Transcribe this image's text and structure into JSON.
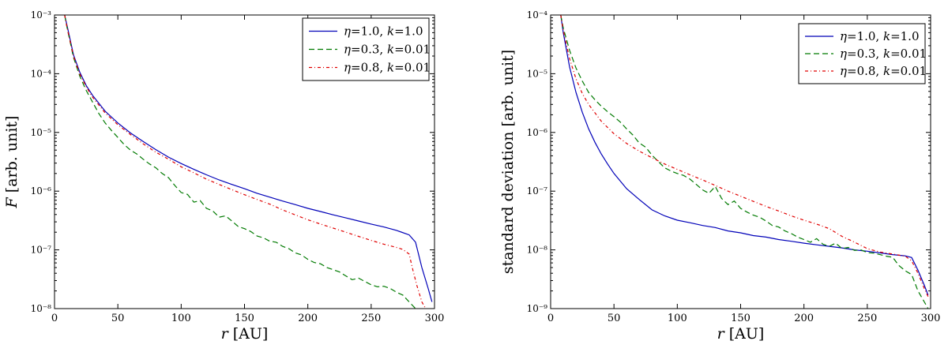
{
  "chart_data": [
    {
      "type": "line",
      "title": "",
      "xlabel_var": "r",
      "xlabel_unit": " [AU]",
      "ylabel_var": "F",
      "ylabel_unit": " [arb. unit]",
      "yscale": "log",
      "xlim": [
        0,
        300
      ],
      "ylim_exp": [
        -8,
        -3
      ],
      "xticks": [
        0,
        50,
        100,
        150,
        200,
        250,
        300
      ],
      "xtick_labels": [
        "0",
        "50",
        "100",
        "150",
        "200",
        "250",
        "300"
      ],
      "yticks_exp": [
        -8,
        -7,
        -6,
        -5,
        -4,
        -3
      ],
      "ytick_labels": [
        "10⁻⁸",
        "10⁻⁷",
        "10⁻⁶",
        "10⁻⁵",
        "10⁻⁴",
        "10⁻³"
      ],
      "legend_position": "top-right",
      "series": [
        {
          "name": "η=1.0, k=1.0",
          "eta": "1.0",
          "k": "1.0",
          "color": "#0000b8",
          "dash": "",
          "x": [
            8,
            10,
            15,
            20,
            25,
            30,
            40,
            50,
            60,
            70,
            80,
            90,
            100,
            110,
            120,
            130,
            140,
            150,
            160,
            170,
            180,
            190,
            200,
            210,
            220,
            230,
            240,
            250,
            260,
            270,
            280,
            285,
            290,
            295,
            298
          ],
          "y": [
            0.001,
            0.00065,
            0.00021,
            0.000105,
            6.3e-05,
            4.3e-05,
            2.3e-05,
            1.45e-05,
            9.8e-06,
            7e-06,
            5.1e-06,
            3.8e-06,
            2.95e-06,
            2.35e-06,
            1.9e-06,
            1.55e-06,
            1.3e-06,
            1.1e-06,
            9.2e-07,
            7.9e-07,
            6.8e-07,
            5.9e-07,
            5.1e-07,
            4.5e-07,
            3.95e-07,
            3.5e-07,
            3.1e-07,
            2.75e-07,
            2.45e-07,
            2.15e-07,
            1.8e-07,
            1.35e-07,
            5e-08,
            2.2e-08,
            1.3e-08
          ]
        },
        {
          "name": "η=0.3, k=0.01",
          "eta": "0.3",
          "k": "0.01",
          "color": "#007a00",
          "dash": "7,4",
          "x": [
            8,
            10,
            15,
            20,
            25,
            30,
            35,
            40,
            45,
            50,
            55,
            60,
            65,
            70,
            75,
            80,
            85,
            90,
            95,
            100,
            105,
            110,
            115,
            120,
            125,
            130,
            135,
            140,
            145,
            150,
            155,
            160,
            165,
            170,
            175,
            180,
            185,
            190,
            195,
            200,
            205,
            210,
            215,
            220,
            225,
            230,
            235,
            240,
            245,
            250,
            255,
            260,
            265,
            270,
            275,
            280,
            285
          ],
          "y": [
            0.001,
            0.0006,
            0.00019,
            9e-05,
            5.2e-05,
            3.3e-05,
            2.1e-05,
            1.45e-05,
            1.08e-05,
            8.2e-06,
            6.2e-06,
            5e-06,
            4.3e-06,
            3.5e-06,
            2.9e-06,
            2.5e-06,
            2e-06,
            1.7e-06,
            1.25e-06,
            9.5e-07,
            8.8e-07,
            6.5e-07,
            6.9e-07,
            5.1e-07,
            4.6e-07,
            3.6e-07,
            3.8e-07,
            3.1e-07,
            2.5e-07,
            2.3e-07,
            2.05e-07,
            1.72e-07,
            1.6e-07,
            1.4e-07,
            1.35e-07,
            1.15e-07,
            1.05e-07,
            8.9e-08,
            8.2e-08,
            6.9e-08,
            6.1e-08,
            5.8e-08,
            5e-08,
            4.6e-08,
            4.2e-08,
            3.6e-08,
            3.1e-08,
            3.3e-08,
            2.9e-08,
            2.55e-08,
            2.35e-08,
            2.4e-08,
            2.2e-08,
            1.9e-08,
            1.7e-08,
            1.3e-08,
            1e-08
          ]
        },
        {
          "name": "η=0.8, k=0.01",
          "eta": "0.8",
          "k": "0.01",
          "color": "#e00000",
          "dash": "4,3,1,3",
          "x": [
            8,
            10,
            15,
            20,
            25,
            30,
            40,
            50,
            60,
            70,
            80,
            90,
            100,
            110,
            120,
            130,
            140,
            150,
            160,
            170,
            180,
            190,
            200,
            210,
            220,
            230,
            240,
            250,
            260,
            270,
            275,
            280,
            283,
            286,
            290,
            293
          ],
          "y": [
            0.001,
            0.0006,
            0.0002,
            9.8e-05,
            6e-05,
            4e-05,
            2.15e-05,
            1.35e-05,
            9.2e-06,
            6.4e-06,
            4.6e-06,
            3.5e-06,
            2.6e-06,
            2.05e-06,
            1.6e-06,
            1.3e-06,
            1.06e-06,
            8.7e-07,
            7.2e-07,
            6e-07,
            4.8e-07,
            3.95e-07,
            3.25e-07,
            2.75e-07,
            2.35e-07,
            2e-07,
            1.7e-07,
            1.45e-07,
            1.25e-07,
            1.1e-07,
            1.02e-07,
            8.5e-08,
            4.5e-08,
            2.5e-08,
            1.3e-08,
            1e-08
          ]
        }
      ]
    },
    {
      "type": "line",
      "title": "",
      "xlabel_var": "r",
      "xlabel_unit": " [AU]",
      "ylabel_text": "standard deviation [arb. unit]",
      "yscale": "log",
      "xlim": [
        0,
        300
      ],
      "ylim_exp": [
        -9,
        -4
      ],
      "xticks": [
        0,
        50,
        100,
        150,
        200,
        250,
        300
      ],
      "xtick_labels": [
        "0",
        "50",
        "100",
        "150",
        "200",
        "250",
        "300"
      ],
      "yticks_exp": [
        -9,
        -8,
        -7,
        -6,
        -5,
        -4
      ],
      "ytick_labels": [
        "10⁻⁹",
        "10⁻⁸",
        "10⁻⁷",
        "10⁻⁶",
        "10⁻⁵",
        "10⁻⁴"
      ],
      "legend_position": "top-right",
      "series": [
        {
          "name": "η=1.0, k=1.0",
          "eta": "1.0",
          "k": "1.0",
          "color": "#0000b8",
          "dash": "",
          "x": [
            8,
            10,
            15,
            20,
            25,
            30,
            35,
            40,
            45,
            50,
            60,
            70,
            80,
            90,
            100,
            110,
            120,
            130,
            140,
            150,
            160,
            170,
            180,
            190,
            200,
            210,
            220,
            230,
            240,
            250,
            260,
            270,
            280,
            285,
            290,
            295,
            298
          ],
          "y": [
            0.0001,
            5e-05,
            1.3e-05,
            4.8e-06,
            2.2e-06,
            1.15e-06,
            6.8e-07,
            4.3e-07,
            2.9e-07,
            2e-07,
            1.1e-07,
            7.2e-08,
            4.8e-08,
            3.8e-08,
            3.2e-08,
            2.9e-08,
            2.6e-08,
            2.4e-08,
            2.1e-08,
            1.95e-08,
            1.75e-08,
            1.65e-08,
            1.5e-08,
            1.4e-08,
            1.3e-08,
            1.22e-08,
            1.15e-08,
            1.08e-08,
            1e-08,
            9.5e-09,
            8.9e-09,
            8.3e-09,
            7.9e-09,
            7.4e-09,
            4.5e-09,
            2.5e-09,
            1.7e-09
          ]
        },
        {
          "name": "η=0.3, k=0.01",
          "eta": "0.3",
          "k": "0.01",
          "color": "#007a00",
          "dash": "7,4",
          "x": [
            8,
            10,
            15,
            20,
            25,
            30,
            35,
            40,
            45,
            50,
            55,
            60,
            65,
            70,
            75,
            80,
            85,
            90,
            95,
            100,
            105,
            110,
            115,
            120,
            125,
            130,
            135,
            140,
            145,
            150,
            155,
            160,
            165,
            170,
            175,
            180,
            185,
            190,
            195,
            200,
            205,
            210,
            215,
            220,
            225,
            230,
            235,
            240,
            245,
            250,
            255,
            260,
            265,
            270,
            275,
            280,
            285,
            290,
            295,
            298
          ],
          "y": [
            0.0001,
            6e-05,
            2.5e-05,
            1.25e-05,
            7.5e-06,
            4.8e-06,
            3.6e-06,
            2.8e-06,
            2.25e-06,
            1.85e-06,
            1.5e-06,
            1.15e-06,
            9e-07,
            6.6e-07,
            5.6e-07,
            4.1e-07,
            3.2e-07,
            2.5e-07,
            2.2e-07,
            2e-07,
            1.85e-07,
            1.6e-07,
            1.3e-07,
            1.05e-07,
            9.2e-08,
            1.2e-07,
            7.5e-08,
            5.9e-08,
            6.8e-08,
            5.1e-08,
            4.4e-08,
            3.9e-08,
            3.6e-08,
            3.1e-08,
            2.6e-08,
            2.45e-08,
            2.1e-08,
            1.9e-08,
            1.65e-08,
            1.5e-08,
            1.35e-08,
            1.55e-08,
            1.25e-08,
            1.15e-08,
            1.3e-08,
            1.05e-08,
            1.1e-08,
            9.8e-09,
            1e-08,
            9e-09,
            8.8e-09,
            8.3e-09,
            7.8e-09,
            7.5e-09,
            5.4e-09,
            4.4e-09,
            3.8e-09,
            2e-09,
            1.3e-09,
            1e-09
          ]
        },
        {
          "name": "η=0.8, k=0.01",
          "eta": "0.8",
          "k": "0.01",
          "color": "#e00000",
          "dash": "4,3,1,3",
          "x": [
            8,
            10,
            15,
            20,
            25,
            30,
            40,
            50,
            60,
            70,
            80,
            90,
            100,
            110,
            120,
            130,
            140,
            150,
            160,
            170,
            180,
            190,
            200,
            210,
            220,
            230,
            240,
            250,
            260,
            270,
            280,
            285,
            290,
            295,
            298
          ],
          "y": [
            0.0001,
            5.5e-05,
            1.8e-05,
            8.2e-06,
            4.6e-06,
            3e-06,
            1.55e-06,
            9.5e-07,
            6.5e-07,
            4.8e-07,
            3.7e-07,
            2.9e-07,
            2.35e-07,
            1.9e-07,
            1.55e-07,
            1.25e-07,
            1e-07,
            8.2e-08,
            6.7e-08,
            5.5e-08,
            4.6e-08,
            3.8e-08,
            3.2e-08,
            2.75e-08,
            2.3e-08,
            1.7e-08,
            1.35e-08,
            1.05e-08,
            9.2e-09,
            8.5e-09,
            7.8e-09,
            6.5e-09,
            4e-09,
            2.2e-09,
            1.6e-09
          ]
        }
      ]
    }
  ]
}
